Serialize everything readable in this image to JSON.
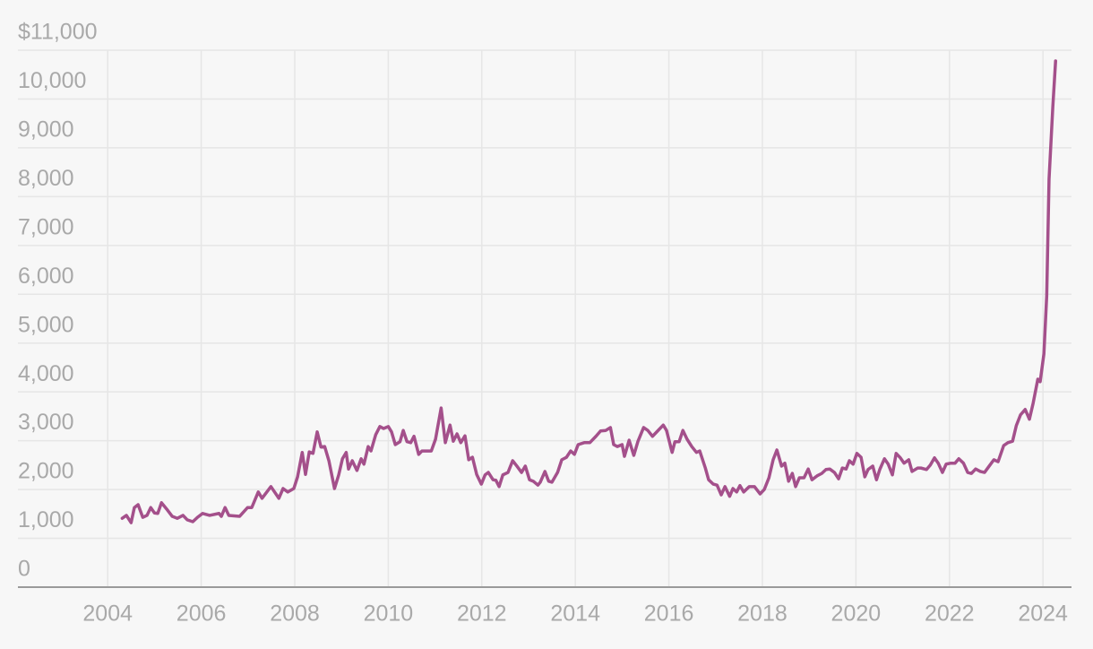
{
  "chart_data": {
    "type": "line",
    "color": "#a4508b",
    "grid": true,
    "xlim": [
      2002.08,
      2024.61
    ],
    "ylim": [
      0,
      11000
    ],
    "xticks": [
      2004,
      2006,
      2008,
      2010,
      2012,
      2014,
      2016,
      2018,
      2020,
      2022,
      2024
    ],
    "yticks": [
      0,
      {
        "value": 1000,
        "label": "1,000"
      },
      {
        "value": 2000,
        "label": "2,000"
      },
      {
        "value": 3000,
        "label": "3,000"
      },
      {
        "value": 4000,
        "label": "4,000"
      },
      {
        "value": 5000,
        "label": "5,000"
      },
      {
        "value": 6000,
        "label": "6,000"
      },
      {
        "value": 7000,
        "label": "7,000"
      },
      {
        "value": 8000,
        "label": "8,000"
      },
      {
        "value": 9000,
        "label": "9,000"
      },
      {
        "value": 10000,
        "label": "10,000"
      },
      {
        "value": 11000,
        "label": "$11,000"
      }
    ],
    "x": [
      2004.31,
      2004.4,
      2004.5,
      2004.57,
      2004.65,
      2004.75,
      2004.84,
      2004.92,
      2005.0,
      2005.07,
      2005.15,
      2005.26,
      2005.38,
      2005.49,
      2005.61,
      2005.7,
      2005.82,
      2005.92,
      2006.03,
      2006.18,
      2006.38,
      2006.43,
      2006.51,
      2006.59,
      2006.82,
      2006.99,
      2007.08,
      2007.22,
      2007.3,
      2007.49,
      2007.66,
      2007.75,
      2007.85,
      2007.98,
      2008.06,
      2008.16,
      2008.23,
      2008.31,
      2008.39,
      2008.48,
      2008.56,
      2008.64,
      2008.73,
      2008.85,
      2008.94,
      2009.02,
      2009.1,
      2009.15,
      2009.23,
      2009.33,
      2009.42,
      2009.48,
      2009.57,
      2009.63,
      2009.73,
      2009.82,
      2009.9,
      2010.0,
      2010.07,
      2010.15,
      2010.25,
      2010.32,
      2010.4,
      2010.48,
      2010.55,
      2010.65,
      2010.72,
      2010.92,
      2011.01,
      2011.13,
      2011.22,
      2011.32,
      2011.39,
      2011.47,
      2011.55,
      2011.64,
      2011.72,
      2011.8,
      2011.89,
      2011.99,
      2012.07,
      2012.14,
      2012.24,
      2012.3,
      2012.37,
      2012.45,
      2012.56,
      2012.66,
      2012.75,
      2012.85,
      2012.93,
      2013.02,
      2013.1,
      2013.2,
      2013.25,
      2013.35,
      2013.43,
      2013.5,
      2013.62,
      2013.71,
      2013.81,
      2013.9,
      2013.98,
      2014.06,
      2014.19,
      2014.31,
      2014.44,
      2014.54,
      2014.65,
      2014.75,
      2014.82,
      2014.9,
      2015.0,
      2015.05,
      2015.15,
      2015.25,
      2015.34,
      2015.46,
      2015.55,
      2015.65,
      2015.76,
      2015.88,
      2015.95,
      2016.07,
      2016.13,
      2016.22,
      2016.3,
      2016.39,
      2016.49,
      2016.59,
      2016.66,
      2016.78,
      2016.85,
      2016.95,
      2017.03,
      2017.12,
      2017.2,
      2017.3,
      2017.37,
      2017.45,
      2017.52,
      2017.6,
      2017.72,
      2017.83,
      2017.95,
      2018.04,
      2018.14,
      2018.23,
      2018.31,
      2018.41,
      2018.48,
      2018.56,
      2018.64,
      2018.71,
      2018.79,
      2018.89,
      2018.98,
      2019.06,
      2019.17,
      2019.27,
      2019.36,
      2019.44,
      2019.54,
      2019.63,
      2019.71,
      2019.79,
      2019.86,
      2019.94,
      2020.02,
      2020.11,
      2020.19,
      2020.26,
      2020.36,
      2020.44,
      2020.51,
      2020.61,
      2020.69,
      2020.78,
      2020.86,
      2020.95,
      2021.03,
      2021.13,
      2021.2,
      2021.32,
      2021.39,
      2021.51,
      2021.59,
      2021.68,
      2021.76,
      2021.85,
      2021.93,
      2022.03,
      2022.12,
      2022.2,
      2022.3,
      2022.39,
      2022.47,
      2022.56,
      2022.66,
      2022.75,
      2022.85,
      2022.95,
      2023.04,
      2023.16,
      2023.25,
      2023.35,
      2023.43,
      2023.52,
      2023.62,
      2023.71,
      2023.79,
      2023.89,
      2023.94,
      2024.02,
      2024.08,
      2024.13,
      2024.21,
      2024.27
    ],
    "values": [
      1410,
      1470,
      1320,
      1630,
      1690,
      1430,
      1470,
      1630,
      1520,
      1510,
      1730,
      1600,
      1450,
      1410,
      1470,
      1380,
      1340,
      1430,
      1510,
      1470,
      1510,
      1450,
      1630,
      1470,
      1450,
      1630,
      1630,
      1950,
      1820,
      2060,
      1820,
      2020,
      1950,
      2020,
      2260,
      2760,
      2310,
      2770,
      2740,
      3180,
      2870,
      2880,
      2590,
      2020,
      2300,
      2630,
      2760,
      2420,
      2590,
      2390,
      2630,
      2520,
      2880,
      2790,
      3120,
      3290,
      3250,
      3290,
      3180,
      2920,
      2980,
      3210,
      2980,
      2960,
      3090,
      2720,
      2790,
      2790,
      3030,
      3670,
      2960,
      3320,
      2990,
      3140,
      2960,
      3100,
      2610,
      2660,
      2310,
      2110,
      2300,
      2350,
      2200,
      2190,
      2060,
      2300,
      2350,
      2590,
      2480,
      2350,
      2480,
      2200,
      2170,
      2090,
      2150,
      2370,
      2170,
      2150,
      2350,
      2610,
      2660,
      2790,
      2720,
      2920,
      2960,
      2960,
      3090,
      3200,
      3210,
      3270,
      2920,
      2880,
      2920,
      2680,
      3010,
      2700,
      2990,
      3270,
      3210,
      3090,
      3200,
      3320,
      3210,
      2760,
      2980,
      2980,
      3210,
      3030,
      2880,
      2760,
      2790,
      2440,
      2200,
      2110,
      2090,
      1890,
      2060,
      1860,
      2020,
      1950,
      2080,
      1950,
      2060,
      2060,
      1910,
      2000,
      2240,
      2610,
      2810,
      2480,
      2540,
      2170,
      2330,
      2060,
      2240,
      2240,
      2420,
      2200,
      2280,
      2330,
      2410,
      2420,
      2350,
      2220,
      2440,
      2420,
      2590,
      2520,
      2740,
      2660,
      2260,
      2410,
      2480,
      2200,
      2410,
      2630,
      2520,
      2300,
      2740,
      2650,
      2540,
      2610,
      2370,
      2440,
      2440,
      2410,
      2500,
      2650,
      2540,
      2350,
      2520,
      2540,
      2540,
      2630,
      2540,
      2350,
      2330,
      2420,
      2370,
      2350,
      2480,
      2610,
      2570,
      2900,
      2960,
      2990,
      3310,
      3530,
      3640,
      3440,
      3770,
      4260,
      4210,
      4780,
      5970,
      8360,
      9830,
      10780
    ]
  }
}
